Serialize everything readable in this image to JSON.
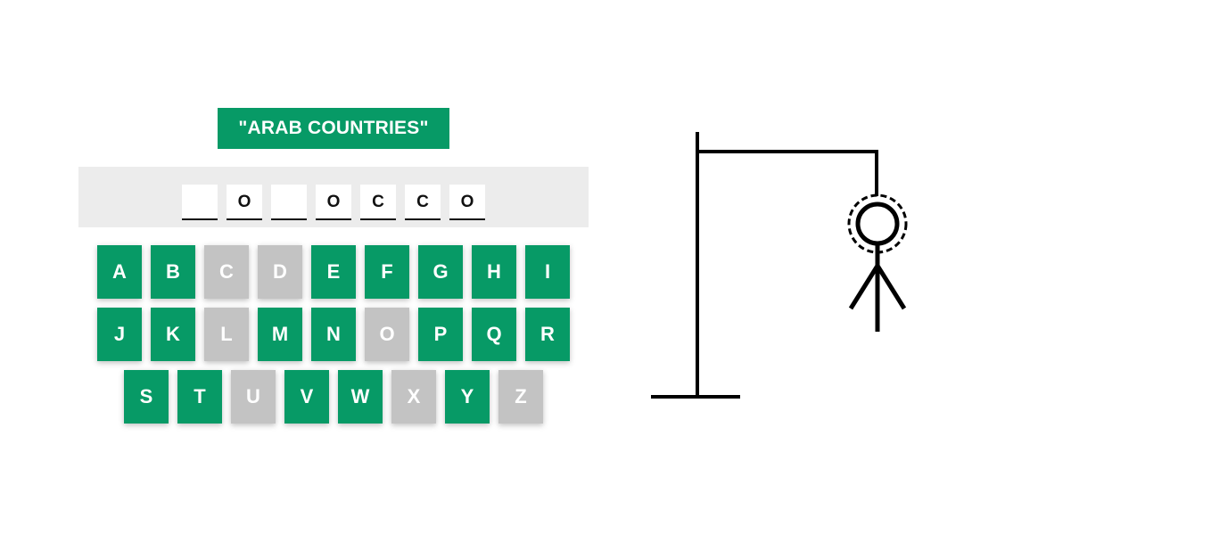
{
  "category": "\"ARAB COUNTRIES\"",
  "word": [
    "",
    "O",
    "",
    "O",
    "C",
    "C",
    "O"
  ],
  "keyboard": {
    "rows": [
      [
        {
          "letter": "A",
          "used": false
        },
        {
          "letter": "B",
          "used": false
        },
        {
          "letter": "C",
          "used": true
        },
        {
          "letter": "D",
          "used": true
        },
        {
          "letter": "E",
          "used": false
        },
        {
          "letter": "F",
          "used": false
        },
        {
          "letter": "G",
          "used": false
        },
        {
          "letter": "H",
          "used": false
        },
        {
          "letter": "I",
          "used": false
        }
      ],
      [
        {
          "letter": "J",
          "used": false
        },
        {
          "letter": "K",
          "used": false
        },
        {
          "letter": "L",
          "used": true
        },
        {
          "letter": "M",
          "used": false
        },
        {
          "letter": "N",
          "used": false
        },
        {
          "letter": "O",
          "used": true
        },
        {
          "letter": "P",
          "used": false
        },
        {
          "letter": "Q",
          "used": false
        },
        {
          "letter": "R",
          "used": false
        }
      ],
      [
        {
          "letter": "S",
          "used": false
        },
        {
          "letter": "T",
          "used": false
        },
        {
          "letter": "U",
          "used": true
        },
        {
          "letter": "V",
          "used": false
        },
        {
          "letter": "W",
          "used": false
        },
        {
          "letter": "X",
          "used": true
        },
        {
          "letter": "Y",
          "used": false
        },
        {
          "letter": "Z",
          "used": true
        }
      ]
    ]
  },
  "hangman": {
    "parts_shown": [
      "head",
      "body",
      "left-arm",
      "right-arm"
    ]
  },
  "colors": {
    "accent": "#079a66",
    "used_key": "#c3c3c3",
    "panel": "#ececec",
    "ink": "#000000"
  }
}
